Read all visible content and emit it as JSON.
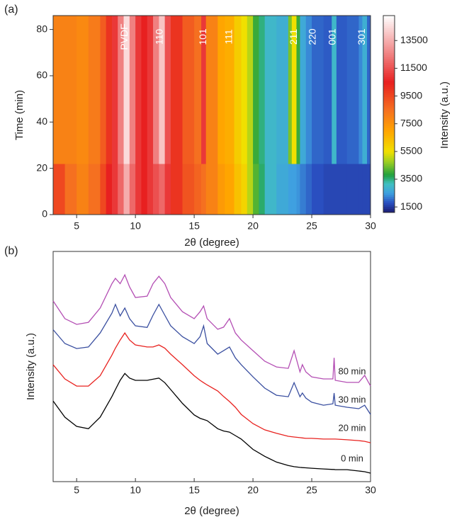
{
  "chart_data": [
    {
      "type": "heatmap",
      "panel": "(a)",
      "xlabel": "2θ (degree)",
      "ylabel": "Time (min)",
      "colorbar_label": "Intensity (a.u.)",
      "xlim": [
        3,
        30
      ],
      "xticks": [
        5,
        10,
        15,
        20,
        25,
        30
      ],
      "ylim": [
        0,
        86
      ],
      "yticks": [
        0,
        20,
        40,
        60,
        80
      ],
      "clim": [
        1100,
        15300
      ],
      "cticks": [
        1500,
        3500,
        5500,
        7500,
        9500,
        11500,
        13500
      ],
      "colorscale": [
        {
          "value": 1100,
          "color": "#1a1a6e"
        },
        {
          "value": 1800,
          "color": "#2a4fc0"
        },
        {
          "value": 2500,
          "color": "#3fa0e0"
        },
        {
          "value": 3200,
          "color": "#40c0c0"
        },
        {
          "value": 3800,
          "color": "#20a040"
        },
        {
          "value": 4800,
          "color": "#a0d020"
        },
        {
          "value": 5500,
          "color": "#f0e000"
        },
        {
          "value": 7000,
          "color": "#ffa500"
        },
        {
          "value": 8500,
          "color": "#f57020"
        },
        {
          "value": 10500,
          "color": "#e82020"
        },
        {
          "value": 12500,
          "color": "#f08080"
        },
        {
          "value": 15300,
          "color": "#ffffff"
        }
      ],
      "x_edges": [
        3,
        4,
        5,
        6,
        7,
        7.5,
        8,
        8.5,
        9,
        9.5,
        10,
        10.5,
        11,
        11.5,
        12,
        12.5,
        13,
        14,
        15,
        15.6,
        16,
        17,
        17.6,
        18.4,
        19,
        19.5,
        20,
        20.5,
        21,
        22,
        23,
        23.3,
        23.7,
        24,
        24.5,
        25,
        26,
        26.7,
        27.1,
        28,
        29,
        29.3,
        29.7,
        30
      ],
      "y_edges": [
        0,
        22,
        86
      ],
      "z": [
        [
          9500,
          8500,
          8000,
          8500,
          9500,
          10500,
          11000,
          12000,
          13500,
          12000,
          11000,
          10500,
          11000,
          11500,
          12000,
          11000,
          10000,
          9200,
          8800,
          8500,
          8000,
          7300,
          7000,
          6300,
          5800,
          5000,
          4200,
          3600,
          3000,
          2700,
          2500,
          2500,
          2400,
          2200,
          2000,
          1800,
          1700,
          1700,
          1700,
          1700,
          1700,
          1700,
          1700
        ],
        [
          8000,
          8000,
          7800,
          8200,
          9000,
          10000,
          11000,
          12500,
          14500,
          12500,
          11000,
          10500,
          11000,
          12500,
          14000,
          11500,
          10000,
          9000,
          8500,
          11000,
          8000,
          7000,
          6800,
          6000,
          5500,
          5000,
          4000,
          3500,
          3000,
          2800,
          4500,
          5500,
          4000,
          2700,
          2300,
          2000,
          1900,
          3000,
          1900,
          2000,
          2300,
          2800,
          2000
        ]
      ],
      "annotations": [
        {
          "text": "PVDF",
          "x": 9.1
        },
        {
          "text": "110",
          "x": 12.1
        },
        {
          "text": "101",
          "x": 15.8
        },
        {
          "text": "111",
          "x": 18
        },
        {
          "text": "211",
          "x": 23.5
        },
        {
          "text": "220",
          "x": 25.1
        },
        {
          "text": "001",
          "x": 26.8
        },
        {
          "text": "301",
          "x": 29.3
        }
      ]
    },
    {
      "type": "line",
      "panel": "(b)",
      "xlabel": "2θ (degree)",
      "ylabel": "Intensity (a.u.)",
      "xlim": [
        3,
        30
      ],
      "xticks": [
        5,
        10,
        15,
        20,
        25,
        30
      ],
      "ylim": [
        0,
        100
      ],
      "x": [
        3,
        4,
        5,
        6,
        7,
        8,
        8.3,
        8.7,
        9.1,
        9.5,
        10,
        11,
        11.5,
        12,
        12.5,
        13,
        14,
        15,
        15.5,
        15.8,
        16.1,
        17,
        17.5,
        18,
        18.5,
        19,
        20,
        21,
        22,
        23,
        23.5,
        24,
        24.2,
        24.5,
        25,
        26,
        26.8,
        26.9,
        27,
        28,
        29,
        29.5,
        30
      ],
      "series": [
        {
          "name": "0 min",
          "color": "#000000",
          "values": [
            35,
            28,
            24,
            23,
            28,
            37,
            40,
            44,
            47,
            45,
            44,
            44,
            44.5,
            45,
            43,
            40,
            34,
            29,
            27.5,
            27,
            26.5,
            23,
            22,
            21.5,
            20,
            18.5,
            14,
            11,
            8.5,
            7,
            6.5,
            6.2,
            6.1,
            6,
            5.8,
            5.5,
            5.3,
            5.3,
            5.2,
            5.2,
            4.6,
            4.3,
            3.7
          ]
        },
        {
          "name": "20 min",
          "color": "#e8221f",
          "values": [
            50.8,
            44.6,
            41.5,
            41.5,
            46,
            55,
            58,
            61.5,
            64.6,
            61.5,
            59.4,
            58.5,
            58.5,
            59.4,
            58,
            55.4,
            50.8,
            46,
            44,
            43,
            42,
            39.4,
            37,
            34.8,
            32.3,
            29.2,
            25.2,
            22.5,
            21,
            19.7,
            19.4,
            19.1,
            19,
            18.8,
            18.8,
            18.5,
            18.5,
            18.5,
            18.5,
            18.2,
            17.8,
            17.5,
            16.9
          ]
        },
        {
          "name": "30 min",
          "color": "#3a4fa0",
          "values": [
            66,
            60,
            57.8,
            58.5,
            64.6,
            73.2,
            77,
            72,
            75.4,
            70.8,
            67.7,
            67,
            72.3,
            77,
            72.3,
            67.7,
            63,
            60,
            63,
            67.7,
            60,
            55.4,
            56.9,
            58.5,
            53.8,
            50.8,
            45.5,
            40.6,
            37.5,
            36.9,
            43,
            36.9,
            38.5,
            36.3,
            34.5,
            33.2,
            33.8,
            38.5,
            33.2,
            32.3,
            31.7,
            33.2,
            29.2
          ]
        },
        {
          "name": "80 min",
          "color": "#b44fb4",
          "values": [
            78.5,
            70.8,
            68.3,
            69.2,
            75.4,
            86,
            88.3,
            86,
            89.8,
            84.6,
            80,
            80.6,
            86,
            89.2,
            86,
            80,
            73.8,
            70.8,
            73.8,
            76.3,
            70.8,
            66.2,
            67.1,
            70.8,
            64.6,
            61.5,
            56.9,
            52.3,
            49.8,
            49.2,
            56.9,
            47.7,
            50.8,
            47.7,
            45.5,
            44.6,
            44.6,
            53.8,
            44,
            43.1,
            43.1,
            46.2,
            41.5
          ]
        }
      ]
    }
  ]
}
